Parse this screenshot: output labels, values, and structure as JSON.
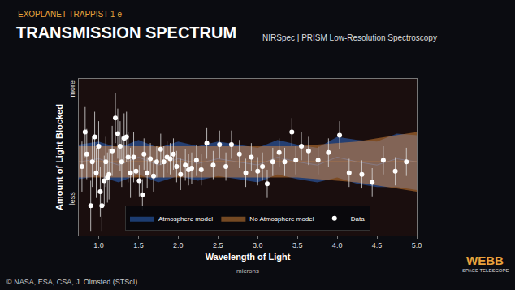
{
  "chart_data": {
    "type": "scatter",
    "title": "TRANSMISSION SPECTRUM",
    "subtitle": "NIRSpec | PRISM Low-Resolution Spectroscopy",
    "xlabel": "Wavelength of Light",
    "ylabel": "Amount of Light Blocked",
    "annotations": [
      "EXOPLANET TRAPPIST-1 e",
      "microns",
      "© NASA, ESA, CSA, J. Olmsted (STScI)",
      "WEBB",
      "SPACE TELESCOPE"
    ],
    "xlim": [
      0.75,
      5.0
    ],
    "xticks": [
      {
        "value": 1.0,
        "label": "1.0"
      },
      {
        "value": 1.5,
        "label": "1.5"
      },
      {
        "value": 2.0,
        "label": "2.0"
      },
      {
        "value": 2.5,
        "label": "2.5"
      },
      {
        "value": 3.0,
        "label": "3.0"
      },
      {
        "value": 3.5,
        "label": "3.5"
      },
      {
        "value": 4.0,
        "label": "4.0"
      },
      {
        "value": 4.5,
        "label": "4.5"
      },
      {
        "value": 5.0,
        "label": "5.0"
      }
    ],
    "ylim": [
      0,
      100
    ],
    "yticks": [
      {
        "value": 93,
        "label": "more"
      },
      {
        "value": 23,
        "label": "less"
      }
    ],
    "grid": false,
    "legend": "bottom",
    "series": [
      {
        "name": "Atmosphere model",
        "type": "band",
        "color": "#2f6fd6",
        "x": [
          0.75,
          1.0,
          1.25,
          1.5,
          1.75,
          2.0,
          2.25,
          2.5,
          2.75,
          3.0,
          3.25,
          3.5,
          3.75,
          4.0,
          4.25,
          4.5,
          4.75,
          5.0
        ],
        "values": [
          47,
          49,
          45,
          50,
          45,
          49,
          46,
          49,
          47,
          45,
          50,
          47,
          45,
          50,
          47,
          45,
          49,
          47
        ],
        "lower": [
          36,
          38,
          34,
          39,
          34,
          38,
          35,
          38,
          36,
          34,
          39,
          36,
          34,
          37,
          33,
          31,
          31,
          29
        ],
        "upper": [
          58,
          60,
          56,
          61,
          56,
          60,
          57,
          60,
          58,
          56,
          61,
          58,
          56,
          63,
          61,
          60,
          65,
          64
        ]
      },
      {
        "name": "No Atmosphere model",
        "type": "band",
        "color": "#e0893a",
        "x": [
          0.75,
          1.0,
          1.25,
          1.5,
          1.75,
          2.0,
          2.25,
          2.5,
          2.75,
          3.0,
          3.25,
          3.5,
          3.75,
          4.0,
          4.25,
          4.5,
          4.75,
          5.0
        ],
        "values": [
          47,
          47,
          47,
          47,
          47,
          47,
          47,
          47,
          47,
          47,
          47,
          47,
          47,
          47,
          47,
          47,
          47,
          47
        ],
        "lower": [
          37,
          37,
          37,
          37,
          37,
          37,
          37,
          37,
          37,
          37,
          37,
          37,
          36,
          35,
          34,
          32,
          30,
          28
        ],
        "upper": [
          57,
          57,
          57,
          57,
          57,
          57,
          57,
          57,
          57,
          57,
          57,
          57,
          58,
          59,
          60,
          62,
          64,
          66
        ]
      },
      {
        "name": "Data",
        "type": "scatter",
        "color": "#ffffff",
        "marker": "circle",
        "x": [
          0.79,
          0.83,
          0.85,
          0.9,
          0.92,
          0.95,
          0.97,
          1.0,
          1.02,
          1.04,
          1.07,
          1.09,
          1.11,
          1.13,
          1.17,
          1.21,
          1.24,
          1.27,
          1.29,
          1.32,
          1.35,
          1.37,
          1.4,
          1.44,
          1.47,
          1.51,
          1.55,
          1.57,
          1.61,
          1.65,
          1.69,
          1.73,
          1.78,
          1.82,
          1.86,
          1.9,
          1.94,
          1.98,
          2.03,
          2.09,
          2.13,
          2.17,
          2.23,
          2.29,
          2.36,
          2.44,
          2.52,
          2.6,
          2.67,
          2.77,
          2.85,
          2.92,
          3.0,
          3.06,
          3.12,
          3.19,
          3.27,
          3.34,
          3.43,
          3.48,
          3.55,
          3.64,
          3.76,
          3.89,
          4.03,
          4.15,
          4.31,
          4.44,
          4.58,
          4.73,
          4.87
        ],
        "values": [
          44,
          66,
          52,
          19,
          47,
          63,
          40,
          57,
          28,
          19,
          35,
          47,
          37,
          39,
          54,
          75,
          65,
          57,
          47,
          62,
          63,
          50,
          40,
          50,
          41,
          35,
          26,
          52,
          40,
          49,
          38,
          47,
          55,
          47,
          50,
          49,
          52,
          44,
          39,
          45,
          42,
          43,
          48,
          42,
          59,
          45,
          58,
          44,
          58,
          52,
          40,
          50,
          41,
          44,
          33,
          47,
          53,
          47,
          66,
          48,
          57,
          54,
          48,
          53,
          64,
          40,
          39,
          34,
          48,
          41,
          47
        ],
        "errors": [
          16,
          16,
          16,
          16,
          16,
          16,
          16,
          16,
          16,
          16,
          16,
          16,
          16,
          16,
          16,
          16,
          16,
          16,
          16,
          16,
          16,
          16,
          16,
          16,
          16,
          10,
          10,
          10,
          10,
          10,
          10,
          10,
          10,
          10,
          10,
          10,
          10,
          10,
          10,
          10,
          10,
          10,
          10,
          10,
          10,
          9,
          9,
          9,
          9,
          9,
          9,
          9,
          9,
          9,
          9,
          9,
          9,
          9,
          9,
          9,
          9,
          9,
          9,
          9,
          9,
          9,
          9,
          9,
          9,
          9,
          9
        ]
      }
    ]
  }
}
